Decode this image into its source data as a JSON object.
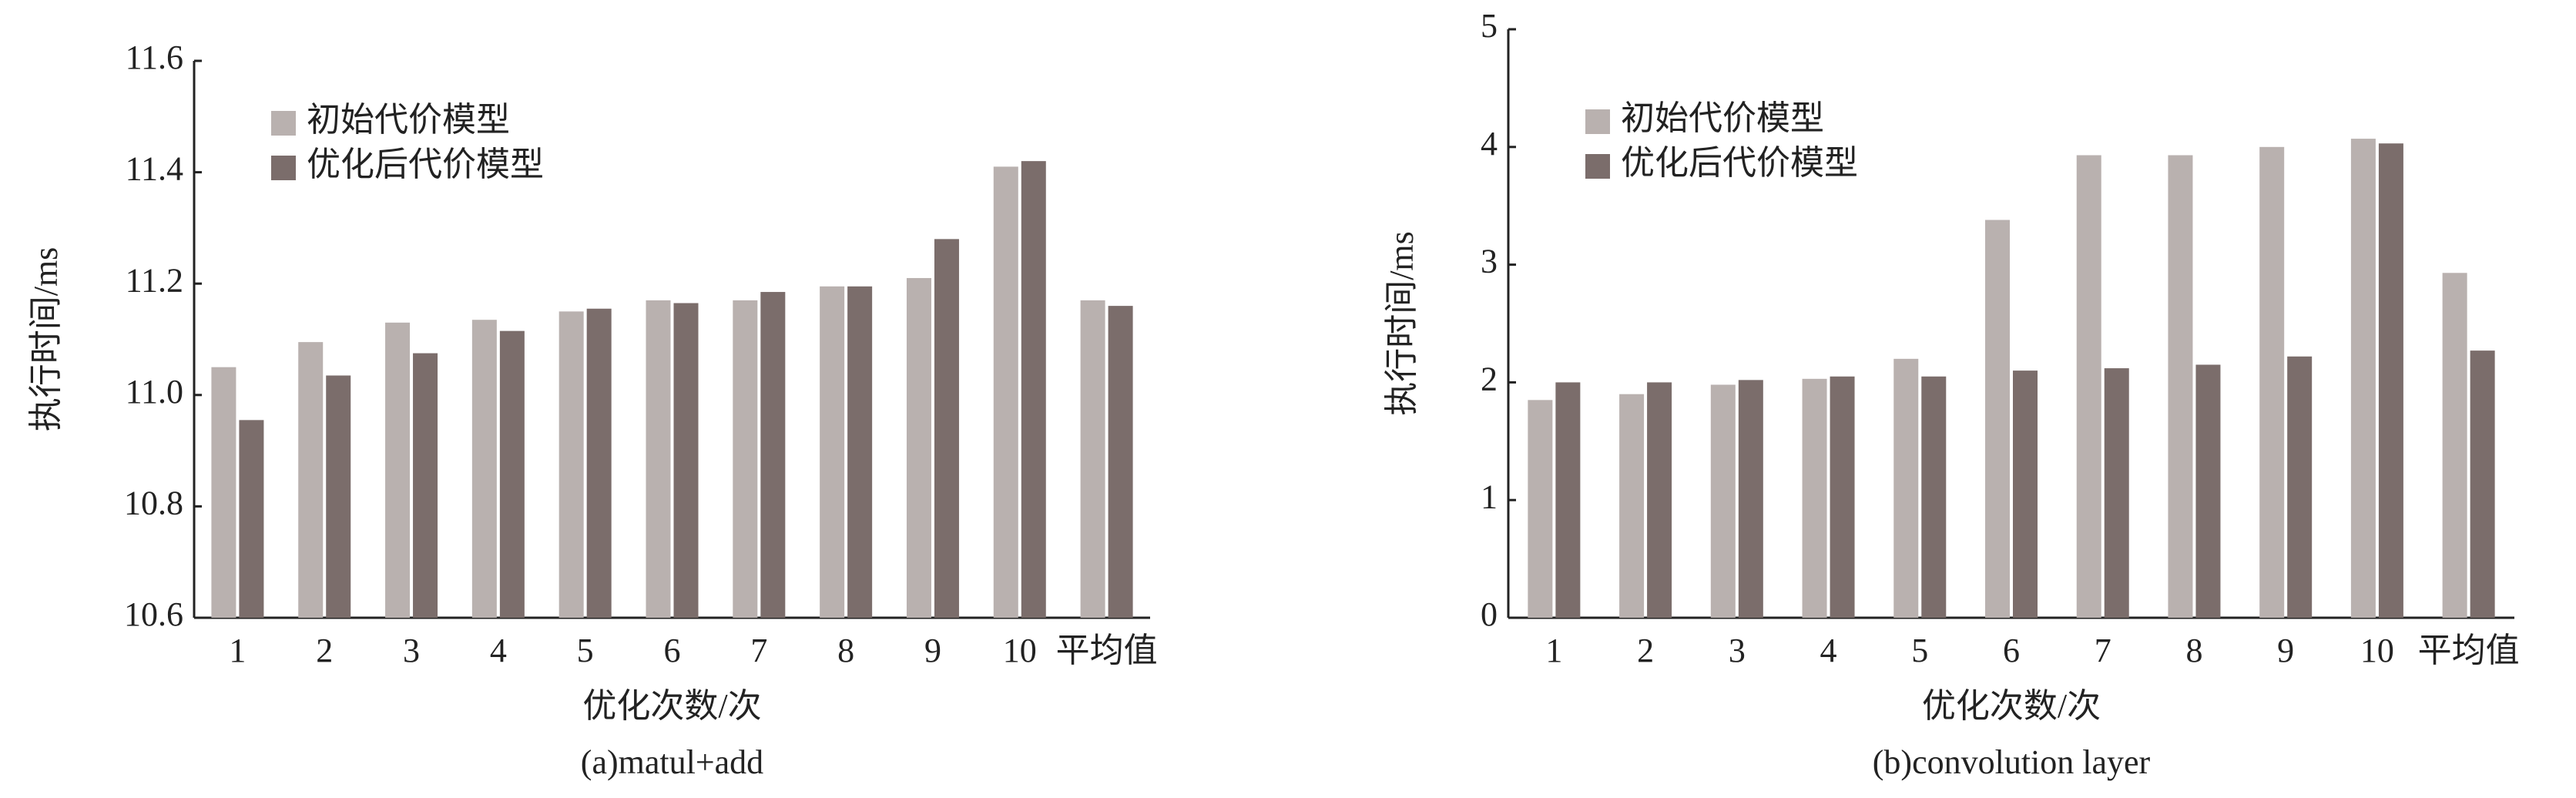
{
  "chart_data": [
    {
      "type": "bar",
      "caption": "(a)matul+add",
      "x_label": "优化次数/次",
      "y_label": "执行时间/ms",
      "categories": [
        "1",
        "2",
        "3",
        "4",
        "5",
        "6",
        "7",
        "8",
        "9",
        "10",
        "平均值"
      ],
      "series": [
        {
          "name": "初始代价模型",
          "color": "#b9b1af",
          "values": [
            11.05,
            11.095,
            11.13,
            11.135,
            11.15,
            11.17,
            11.17,
            11.195,
            11.21,
            11.41,
            11.17
          ]
        },
        {
          "name": "优化后代价模型",
          "color": "#7b6d6b",
          "values": [
            10.955,
            11.035,
            11.075,
            11.115,
            11.155,
            11.165,
            11.185,
            11.195,
            11.28,
            11.42,
            11.16
          ]
        }
      ],
      "ylim": [
        10.6,
        11.6
      ],
      "yticks": [
        10.6,
        10.8,
        {
          "value": 11,
          "label": "11.0"
        },
        11.2,
        11.4,
        11.6
      ],
      "legend": "upper left",
      "grid": false
    },
    {
      "type": "bar",
      "caption": "(b)convolution layer",
      "x_label": "优化次数/次",
      "y_label": "执行时间/ms",
      "categories": [
        "1",
        "2",
        "3",
        "4",
        "5",
        "6",
        "7",
        "8",
        "9",
        "10",
        "平均值"
      ],
      "series": [
        {
          "name": "初始代价模型",
          "color": "#b9b1af",
          "values": [
            1.85,
            1.9,
            1.98,
            2.03,
            2.2,
            3.38,
            3.93,
            3.93,
            4.0,
            4.07,
            2.93
          ]
        },
        {
          "name": "优化后代价模型",
          "color": "#7b6d6b",
          "values": [
            2.0,
            2.0,
            2.02,
            2.05,
            2.05,
            2.1,
            2.12,
            2.15,
            2.22,
            4.03,
            2.27
          ]
        }
      ],
      "ylim": [
        0,
        5
      ],
      "yticks": [
        0,
        1,
        2,
        3,
        4,
        5
      ],
      "legend": "upper left",
      "grid": false
    }
  ]
}
